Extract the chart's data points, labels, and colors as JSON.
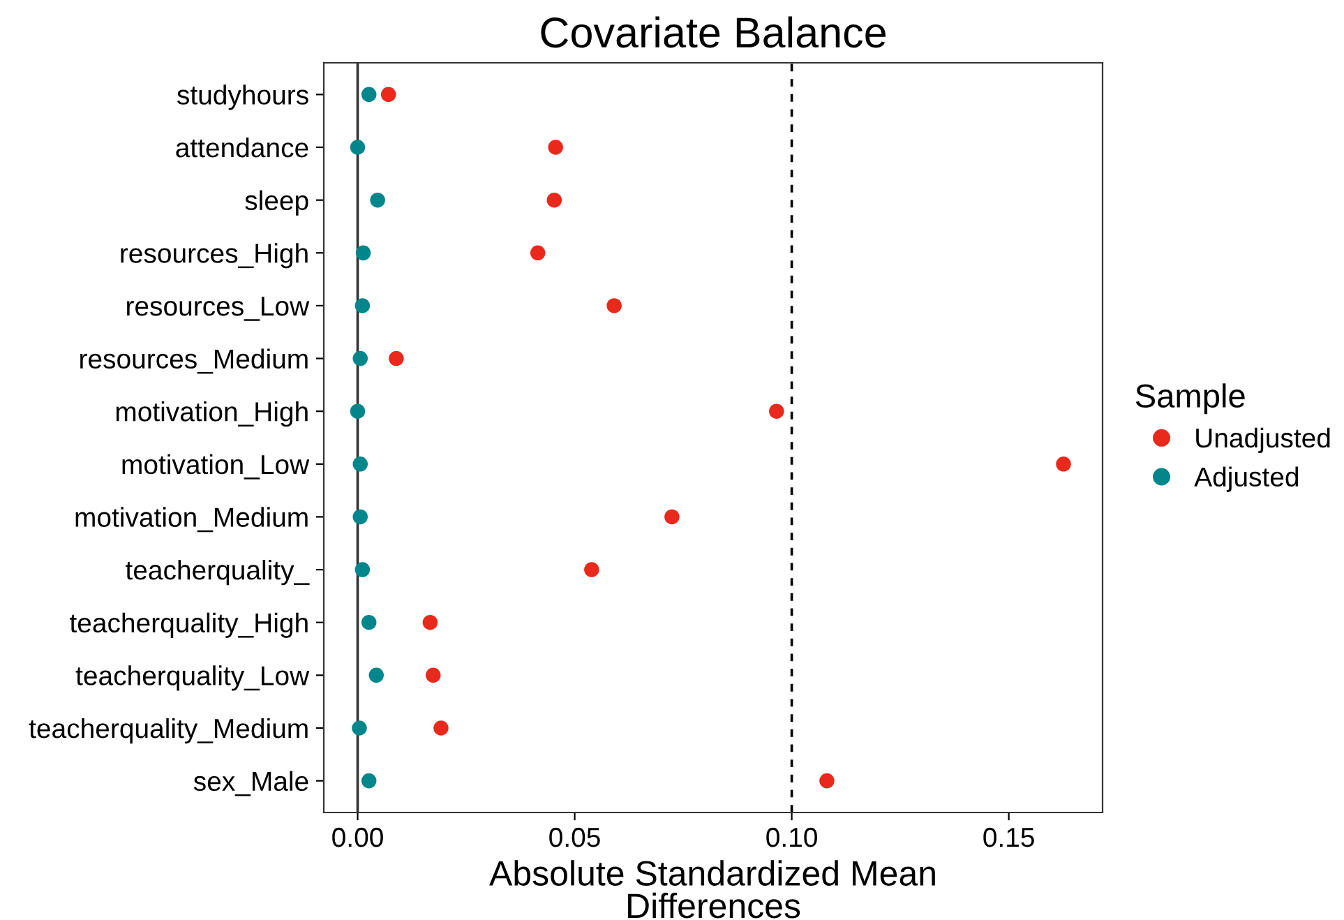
{
  "chart_data": {
    "type": "scatter",
    "orientation": "horizontal",
    "title": "Covariate Balance",
    "xlabel": "Absolute Standardized Mean\nDifferences",
    "legend_title": "Sample",
    "legend": "right",
    "grid": false,
    "marker": "circle",
    "categories": [
      "studyhours",
      "attendance",
      "sleep",
      "resources_High",
      "resources_Low",
      "resources_Medium",
      "motivation_High",
      "motivation_Low",
      "motivation_Medium",
      "teacherquality_",
      "teacherquality_High",
      "teacherquality_Low",
      "teacherquality_Medium",
      "sex_Male"
    ],
    "series": [
      {
        "name": "Unadjusted",
        "color": "#e8291c",
        "values": [
          0.0071,
          0.0456,
          0.0453,
          0.0415,
          0.0591,
          0.0089,
          0.0965,
          0.1626,
          0.0724,
          0.0539,
          0.0167,
          0.0174,
          0.0192,
          0.1081
        ]
      },
      {
        "name": "Adjusted",
        "color": "#00868b",
        "values": [
          0.0026,
          0.0,
          0.0046,
          0.0013,
          0.0011,
          0.0006,
          0.0,
          0.0006,
          0.0006,
          0.0011,
          0.0026,
          0.0043,
          0.0004,
          0.0026
        ]
      }
    ],
    "xlim": [
      -0.0078,
      0.1716
    ],
    "xticks": [
      {
        "value": 0,
        "label": "0.00"
      },
      {
        "value": 0.05,
        "label": "0.05"
      },
      {
        "value": 0.1,
        "label": "0.10"
      },
      {
        "value": 0.15,
        "label": "0.15"
      }
    ],
    "ref_lines": [
      {
        "axis": "x",
        "value": 0,
        "color": "#333333",
        "line_style": "solid"
      },
      {
        "axis": "x",
        "value": 0.1,
        "color": "#000000",
        "line_style": "dashed"
      }
    ]
  }
}
